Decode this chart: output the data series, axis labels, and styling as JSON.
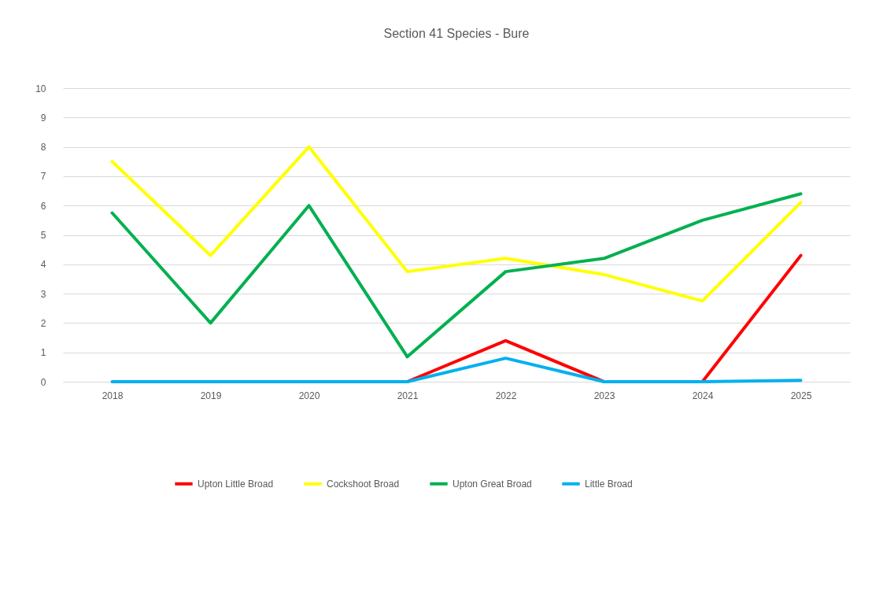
{
  "chart_data": {
    "type": "line",
    "title": "Section 41 Species - Bure",
    "categories": [
      "2018",
      "2019",
      "2020",
      "2021",
      "2022",
      "2023",
      "2024",
      "2025"
    ],
    "series": [
      {
        "name": "Upton Little Broad",
        "color": "#ff0000",
        "values": [
          null,
          null,
          null,
          0,
          1.4,
          0,
          0,
          4.3
        ]
      },
      {
        "name": "Cockshoot Broad",
        "color": "#ffff00",
        "values": [
          7.5,
          4.3,
          8,
          3.75,
          4.2,
          3.65,
          2.75,
          6.1
        ]
      },
      {
        "name": "Upton Great Broad",
        "color": "#00b050",
        "values": [
          5.75,
          2,
          6,
          0.85,
          3.75,
          4.2,
          5.5,
          6.4
        ]
      },
      {
        "name": "Little Broad",
        "color": "#00b0f0",
        "values": [
          0,
          0,
          0,
          0,
          0.8,
          0,
          0,
          0.05
        ]
      }
    ],
    "ylim": [
      0,
      10
    ],
    "yticks": [
      0,
      1,
      2,
      3,
      4,
      5,
      6,
      7,
      8,
      9,
      10
    ],
    "grid": "y",
    "legend": "bottom",
    "line_style": "solid"
  }
}
